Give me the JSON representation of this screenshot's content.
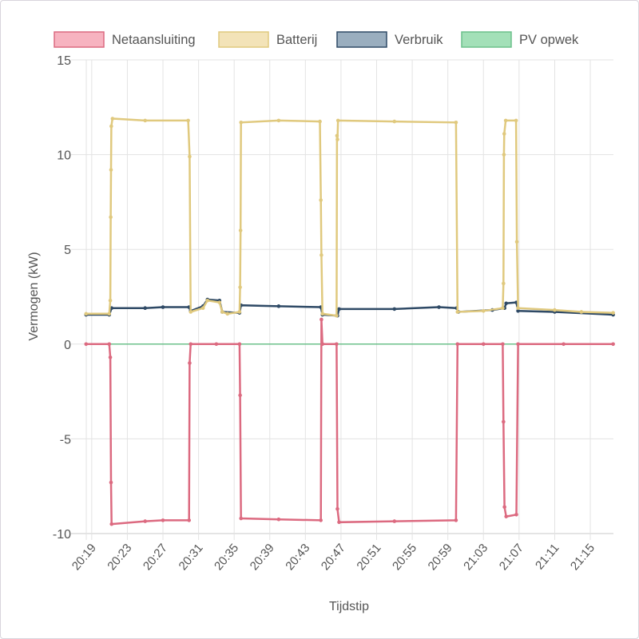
{
  "chart_data": {
    "type": "line",
    "title": "",
    "xlabel": "Tijdstip",
    "ylabel": "Vermogen (kW)",
    "xlim": [
      "20:17:24",
      "21:17:36"
    ],
    "ylim": [
      -10,
      15
    ],
    "yticks": [
      15,
      10,
      5,
      0,
      -5,
      -10
    ],
    "xticks": [
      "20:19",
      "20:23",
      "20:27",
      "20:31",
      "20:35",
      "20:39",
      "20:43",
      "20:47",
      "20:51",
      "20:55",
      "20:59",
      "21:03",
      "21:07",
      "21:11",
      "21:15"
    ],
    "grid": true,
    "legend_position": "top",
    "series": [
      {
        "name": "Netaansluiting",
        "line_color": "#dc6a80",
        "fill_color": "#f7b3c0",
        "points": [
          [
            "20:18:22",
            0
          ],
          [
            "20:20:58",
            0
          ],
          [
            "20:21:05",
            -0.7
          ],
          [
            "20:21:10",
            -7.3
          ],
          [
            "20:21:14",
            -9.5
          ],
          [
            "20:25:00",
            -9.35
          ],
          [
            "20:27:00",
            -9.3
          ],
          [
            "20:29:56",
            -9.3
          ],
          [
            "20:30:00",
            -1.0
          ],
          [
            "20:30:07",
            0
          ],
          [
            "20:33:00",
            0
          ],
          [
            "20:35:36",
            0
          ],
          [
            "20:35:40",
            -2.7
          ],
          [
            "20:35:46",
            -9.2
          ],
          [
            "20:40:00",
            -9.25
          ],
          [
            "20:44:44",
            -9.3
          ],
          [
            "20:44:48",
            1.3
          ],
          [
            "20:44:55",
            0
          ],
          [
            "20:46:30",
            0
          ],
          [
            "20:46:36",
            -8.7
          ],
          [
            "20:46:47",
            -9.4
          ],
          [
            "20:53:00",
            -9.35
          ],
          [
            "20:59:55",
            -9.3
          ],
          [
            "21:00:05",
            0
          ],
          [
            "21:03:00",
            0
          ],
          [
            "21:05:10",
            0
          ],
          [
            "21:05:15",
            -4.1
          ],
          [
            "21:05:22",
            -8.6
          ],
          [
            "21:05:33",
            -9.1
          ],
          [
            "21:06:42",
            -9.0
          ],
          [
            "21:06:53",
            0
          ],
          [
            "21:12:00",
            0
          ],
          [
            "21:17:34",
            0
          ]
        ]
      },
      {
        "name": "Batterij",
        "line_color": "#e0c97e",
        "fill_color": "#f3e3b8",
        "points": [
          [
            "20:18:22",
            1.6
          ],
          [
            "20:20:58",
            1.6
          ],
          [
            "20:21:05",
            2.3
          ],
          [
            "20:21:08",
            6.7
          ],
          [
            "20:21:10",
            9.2
          ],
          [
            "20:21:12",
            11.5
          ],
          [
            "20:21:20",
            11.9
          ],
          [
            "20:25:00",
            11.8
          ],
          [
            "20:29:50",
            11.8
          ],
          [
            "20:30:00",
            9.9
          ],
          [
            "20:30:07",
            1.7
          ],
          [
            "20:31:30",
            1.9
          ],
          [
            "20:32:00",
            2.3
          ],
          [
            "20:33:21",
            2.2
          ],
          [
            "20:33:40",
            1.7
          ],
          [
            "20:34:15",
            1.6
          ],
          [
            "20:35:36",
            1.7
          ],
          [
            "20:35:40",
            3.0
          ],
          [
            "20:35:43",
            6.0
          ],
          [
            "20:35:46",
            11.7
          ],
          [
            "20:40:00",
            11.8
          ],
          [
            "20:44:38",
            11.75
          ],
          [
            "20:44:44",
            7.6
          ],
          [
            "20:44:48",
            4.7
          ],
          [
            "20:44:55",
            1.6
          ],
          [
            "20:46:30",
            1.5
          ],
          [
            "20:46:33",
            11.0
          ],
          [
            "20:46:36",
            10.8
          ],
          [
            "20:46:40",
            11.8
          ],
          [
            "20:53:00",
            11.75
          ],
          [
            "20:59:55",
            11.7
          ],
          [
            "21:00:05",
            1.7
          ],
          [
            "21:03:00",
            1.75
          ],
          [
            "21:05:10",
            1.9
          ],
          [
            "21:05:15",
            3.2
          ],
          [
            "21:05:18",
            10.0
          ],
          [
            "21:05:20",
            11.1
          ],
          [
            "21:05:30",
            11.8
          ],
          [
            "21:06:40",
            11.8
          ],
          [
            "21:06:45",
            5.4
          ],
          [
            "21:06:53",
            1.9
          ],
          [
            "21:11:00",
            1.8
          ],
          [
            "21:14:00",
            1.7
          ],
          [
            "21:17:34",
            1.65
          ]
        ]
      },
      {
        "name": "Verbruik",
        "line_color": "#2f4a66",
        "fill_color": "#9aaebf",
        "points": [
          [
            "20:18:22",
            1.55
          ],
          [
            "20:20:58",
            1.55
          ],
          [
            "20:21:14",
            1.9
          ],
          [
            "20:25:00",
            1.9
          ],
          [
            "20:27:00",
            1.95
          ],
          [
            "20:29:56",
            1.95
          ],
          [
            "20:30:07",
            1.75
          ],
          [
            "20:31:30",
            2.0
          ],
          [
            "20:32:00",
            2.35
          ],
          [
            "20:33:21",
            2.3
          ],
          [
            "20:33:40",
            1.7
          ],
          [
            "20:35:36",
            1.65
          ],
          [
            "20:35:46",
            2.05
          ],
          [
            "20:40:00",
            2.0
          ],
          [
            "20:44:44",
            1.95
          ],
          [
            "20:44:55",
            1.55
          ],
          [
            "20:46:36",
            1.5
          ],
          [
            "20:46:47",
            1.85
          ],
          [
            "20:53:00",
            1.85
          ],
          [
            "20:58:00",
            1.95
          ],
          [
            "21:00:00",
            1.9
          ],
          [
            "21:00:10",
            1.7
          ],
          [
            "21:04:00",
            1.8
          ],
          [
            "21:05:22",
            1.9
          ],
          [
            "21:05:33",
            2.15
          ],
          [
            "21:06:42",
            2.2
          ],
          [
            "21:06:53",
            1.75
          ],
          [
            "21:11:00",
            1.7
          ],
          [
            "21:17:34",
            1.55
          ]
        ]
      },
      {
        "name": "PV opwek",
        "line_color": "#6cc08b",
        "fill_color": "#a3e0b8",
        "points": [
          [
            "20:18:22",
            0
          ],
          [
            "21:17:34",
            0
          ]
        ]
      }
    ]
  }
}
